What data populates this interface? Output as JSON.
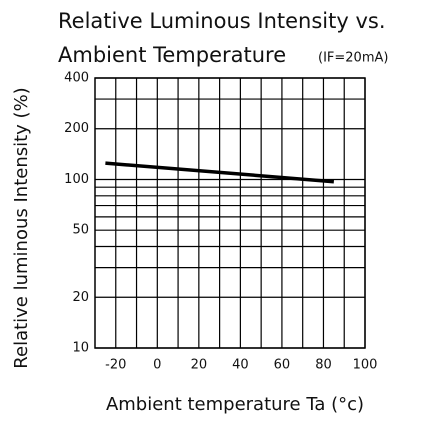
{
  "chart_data": {
    "type": "line",
    "title": "Relative Luminous Intensity vs.",
    "subtitle": "Ambient Temperature",
    "annotation": "(IF=20mA)",
    "x_label": "Ambient temperature Ta (°c)",
    "y_label": "Relative luminous Intensity (%)",
    "x": [
      -25,
      85
    ],
    "series": [
      {
        "name": null,
        "color": "#000000",
        "values": [
          125,
          97
        ]
      }
    ],
    "xlim": [
      -30,
      100
    ],
    "xticks": [
      -20,
      0,
      20,
      40,
      60,
      80,
      100
    ],
    "xminor": [
      -10,
      10,
      30,
      50,
      70,
      90
    ],
    "ylim": [
      10,
      400
    ],
    "yticks": [
      10,
      20,
      50,
      100,
      200,
      400
    ],
    "yminor": [
      30,
      40,
      60,
      70,
      80,
      90,
      300
    ],
    "ylog": true,
    "grid": true
  }
}
